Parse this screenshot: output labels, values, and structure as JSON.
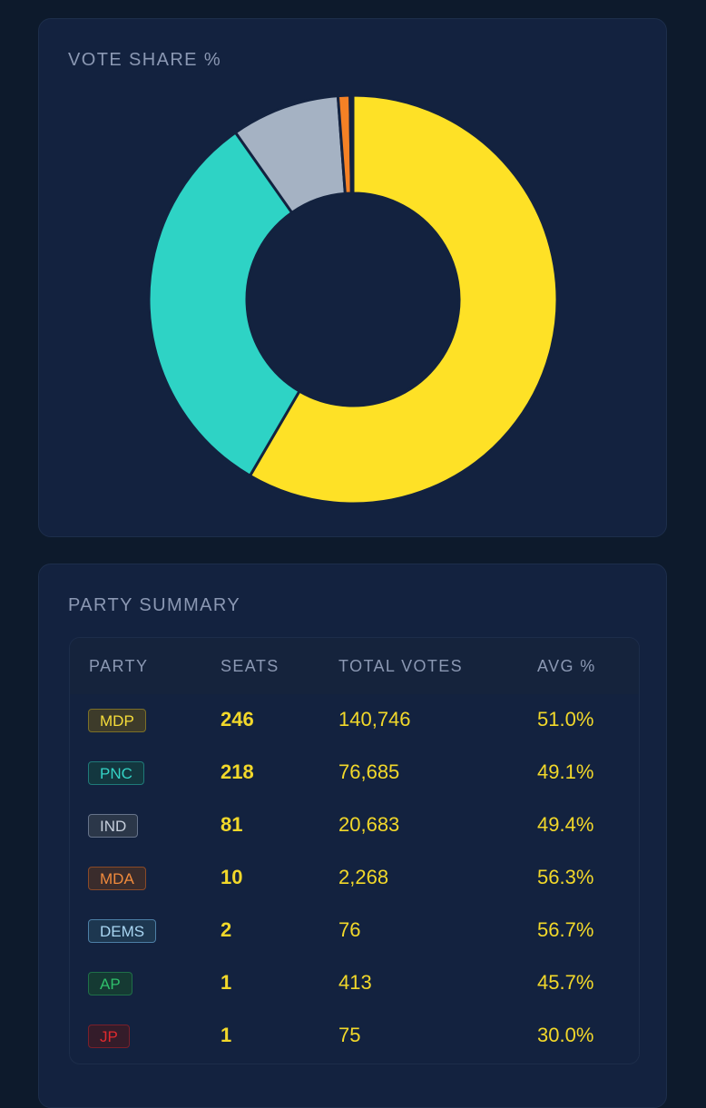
{
  "vote_share_card": {
    "title": "VOTE SHARE %"
  },
  "chart_data": {
    "type": "pie",
    "donut": true,
    "title": "VOTE SHARE %",
    "categories": [
      "MDP",
      "PNC",
      "IND",
      "MDA",
      "DEMS",
      "AP",
      "JP"
    ],
    "values": [
      140746,
      76685,
      20683,
      2268,
      76,
      413,
      75
    ],
    "colors": [
      "#fee126",
      "#2ed3c5",
      "#a5b2c3",
      "#f58125",
      "#6cc3f1",
      "#2fb765",
      "#e22526"
    ],
    "legend": "none"
  },
  "summary": {
    "title": "PARTY SUMMARY",
    "headers": {
      "party": "PARTY",
      "seats": "SEATS",
      "total_votes": "TOTAL VOTES",
      "avg": "AVG %"
    },
    "rows": [
      {
        "party": "MDP",
        "seats": "246",
        "total_votes": "140,746",
        "avg": "51.0%",
        "badge_bg": "#3d3b2a",
        "badge_border": "#7c7028",
        "badge_text": "#f6dd3a"
      },
      {
        "party": "PNC",
        "seats": "218",
        "total_votes": "76,685",
        "avg": "49.1%",
        "badge_bg": "#13373f",
        "badge_border": "#1f7a79",
        "badge_text": "#34d3c6"
      },
      {
        "party": "IND",
        "seats": "81",
        "total_votes": "20,683",
        "avg": "49.4%",
        "badge_bg": "#2b3749",
        "badge_border": "#66738a",
        "badge_text": "#c5cedb"
      },
      {
        "party": "MDA",
        "seats": "10",
        "total_votes": "2,268",
        "avg": "56.3%",
        "badge_bg": "#3a2c2c",
        "badge_border": "#8a4a28",
        "badge_text": "#f08a3c"
      },
      {
        "party": "DEMS",
        "seats": "2",
        "total_votes": "76",
        "avg": "56.7%",
        "badge_bg": "#1d3750",
        "badge_border": "#4d7fa6",
        "badge_text": "#a9d6f2"
      },
      {
        "party": "AP",
        "seats": "1",
        "total_votes": "413",
        "avg": "45.7%",
        "badge_bg": "#153a33",
        "badge_border": "#1f6f48",
        "badge_text": "#2fbe6b"
      },
      {
        "party": "JP",
        "seats": "1",
        "total_votes": "75",
        "avg": "30.0%",
        "badge_bg": "#341c2a",
        "badge_border": "#7a1f2a",
        "badge_text": "#e02a2e"
      }
    ]
  }
}
